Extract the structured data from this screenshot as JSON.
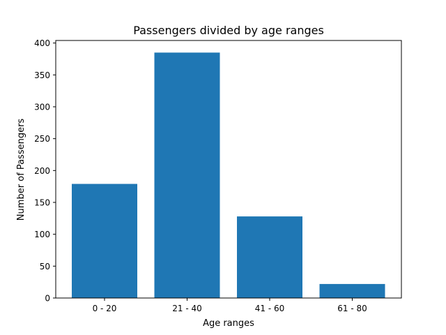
{
  "chart_data": {
    "type": "bar",
    "title": "Passengers divided by age ranges",
    "xlabel": "Age ranges",
    "ylabel": "Number of Passengers",
    "categories": [
      "0 - 20",
      "21 - 40",
      "41 - 60",
      "61 - 80"
    ],
    "values": [
      179,
      385,
      128,
      22
    ],
    "ylim": [
      0,
      404
    ],
    "yticks": [
      0,
      50,
      100,
      150,
      200,
      250,
      300,
      350,
      400
    ],
    "grid": false,
    "legend": "none",
    "bar_color": "#1f77b4"
  }
}
